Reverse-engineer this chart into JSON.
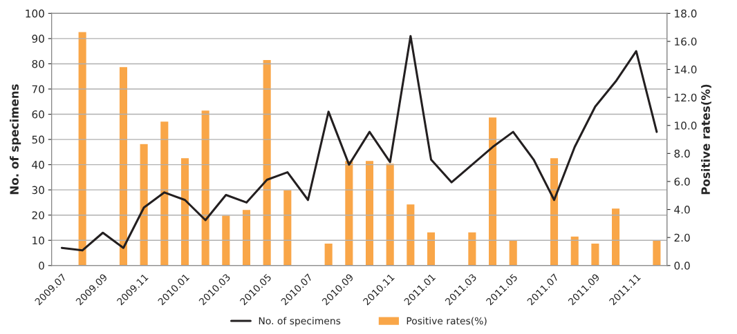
{
  "chart_data": {
    "type": "bar",
    "categories": [
      "2009.07",
      null,
      "2009.09",
      null,
      "2009.11",
      null,
      "2010.01",
      null,
      "2010.03",
      null,
      "2010.05",
      null,
      "2010.07",
      null,
      "2010.09",
      null,
      "2010.11",
      null,
      "2011.01",
      null,
      "2011.03",
      null,
      "2011.05",
      null,
      "2011.07",
      null,
      "2011.09",
      null,
      "2011.11",
      null
    ],
    "series": [
      {
        "name": "No. of specimens",
        "type": "line",
        "color": "#231f20",
        "axis": "y",
        "values": [
          7,
          6,
          13,
          7,
          23,
          29,
          26,
          18,
          28,
          25,
          34,
          37,
          26,
          61,
          40,
          53,
          41,
          91,
          42,
          33,
          40,
          47,
          53,
          42,
          26,
          47,
          63,
          73,
          85,
          53
        ]
      },
      {
        "name": "Positive rates(%)",
        "color": "#f9a648",
        "axis": "y2",
        "values": [
          null,
          16.7,
          null,
          14.2,
          8.7,
          10.3,
          7.7,
          11.1,
          3.6,
          4.0,
          14.7,
          5.4,
          null,
          1.6,
          7.5,
          7.5,
          7.3,
          4.4,
          2.4,
          null,
          2.4,
          10.6,
          1.8,
          null,
          7.7,
          2.1,
          1.6,
          4.1,
          null,
          1.8
        ]
      }
    ],
    "ylabel": "No. of specimens",
    "y2label": "Positive rates(%)",
    "ylim": [
      0,
      100
    ],
    "yticks": [
      0,
      10,
      20,
      30,
      40,
      50,
      60,
      70,
      80,
      90,
      100
    ],
    "y2lim": [
      0,
      18
    ],
    "y2ticks": [
      {
        "value": 0,
        "label": "0.0"
      },
      {
        "value": 2,
        "label": "2.0"
      },
      {
        "value": 4,
        "label": "4.0"
      },
      {
        "value": 6,
        "label": "6.0"
      },
      {
        "value": 8,
        "label": "8.0"
      },
      {
        "value": 10,
        "label": "10.0"
      },
      {
        "value": 12,
        "label": "12.0"
      },
      {
        "value": 14,
        "label": "14.0"
      },
      {
        "value": 16,
        "label": "16.0"
      },
      {
        "value": 18,
        "label": "18.0"
      }
    ],
    "grid": "y",
    "legend": "bottom",
    "marker": "none",
    "line_style": "solid"
  }
}
